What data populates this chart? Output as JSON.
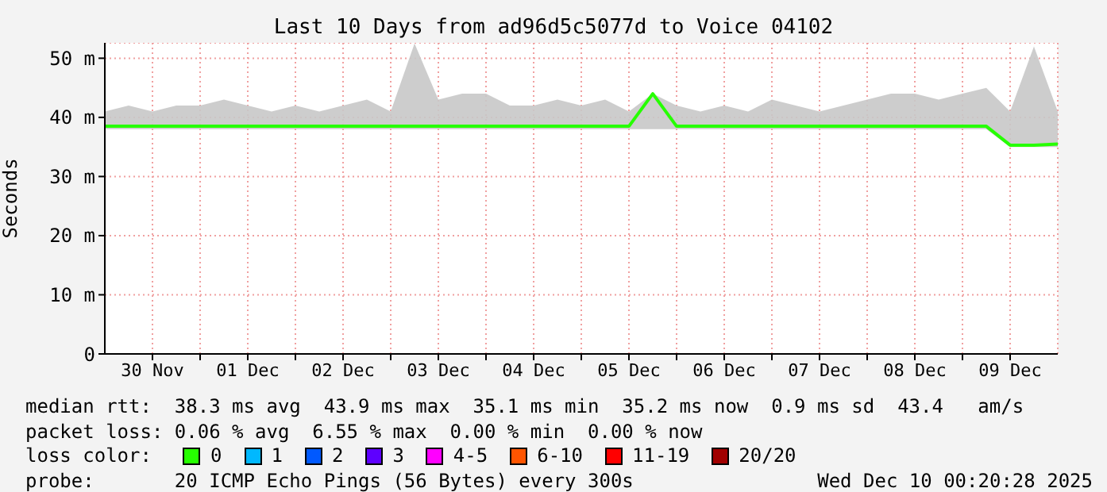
{
  "chart_data": {
    "type": "line",
    "title": "Last 10 Days from ad96d5c5077d to Voice 04102",
    "ylabel": "Seconds",
    "legend_title": "loss color:",
    "legend": "bottom",
    "grid": true,
    "marker": "none",
    "line_style": "solid",
    "x": [
      "2025-11-30T00:00",
      "2025-11-30T06:00",
      "2025-11-30T12:00",
      "2025-11-30T18:00",
      "2025-12-01T00:00",
      "2025-12-01T06:00",
      "2025-12-01T12:00",
      "2025-12-01T18:00",
      "2025-12-02T00:00",
      "2025-12-02T06:00",
      "2025-12-02T12:00",
      "2025-12-02T18:00",
      "2025-12-03T00:00",
      "2025-12-03T06:00",
      "2025-12-03T12:00",
      "2025-12-03T18:00",
      "2025-12-04T00:00",
      "2025-12-04T06:00",
      "2025-12-04T12:00",
      "2025-12-04T18:00",
      "2025-12-05T00:00",
      "2025-12-05T06:00",
      "2025-12-05T12:00",
      "2025-12-05T18:00",
      "2025-12-06T00:00",
      "2025-12-06T06:00",
      "2025-12-06T12:00",
      "2025-12-06T18:00",
      "2025-12-07T00:00",
      "2025-12-07T06:00",
      "2025-12-07T12:00",
      "2025-12-07T18:00",
      "2025-12-08T00:00",
      "2025-12-08T06:00",
      "2025-12-08T12:00",
      "2025-12-08T18:00",
      "2025-12-09T00:00",
      "2025-12-09T06:00",
      "2025-12-09T12:00",
      "2025-12-09T18:00",
      "2025-12-10T00:00"
    ],
    "series": [
      {
        "name": "0",
        "color": "#26ff00",
        "values": [
          38.5,
          38.5,
          38.5,
          38.5,
          38.5,
          38.5,
          38.5,
          38.5,
          38.5,
          38.5,
          38.5,
          38.5,
          38.5,
          38.5,
          38.5,
          38.5,
          38.5,
          38.5,
          38.5,
          38.5,
          38.5,
          38.5,
          38.5,
          44,
          38.5,
          38.5,
          38.5,
          38.5,
          38.5,
          38.5,
          38.5,
          38.5,
          38.5,
          38.5,
          38.5,
          38.5,
          38.5,
          38.5,
          35.3,
          35.3,
          35.5
        ],
        "lower": [
          38,
          38,
          38,
          38,
          38,
          38,
          38,
          38,
          38,
          38,
          38,
          38,
          38,
          38,
          38,
          38,
          38,
          38,
          38,
          38,
          38,
          38,
          38,
          38,
          38,
          38,
          38,
          38,
          38,
          38,
          38,
          38,
          38,
          38,
          38,
          38,
          38,
          38,
          35,
          35,
          35
        ],
        "upper": [
          41,
          42,
          41,
          42,
          42,
          43,
          42,
          41,
          42,
          41,
          42,
          43,
          41,
          52.5,
          43,
          44,
          44,
          42,
          42,
          43,
          42,
          43,
          41,
          44,
          42,
          41,
          42,
          41,
          43,
          42,
          41,
          42,
          43,
          44,
          44,
          43,
          44,
          45,
          41,
          52,
          41
        ]
      },
      {
        "name": "1",
        "color": "#00b8ff",
        "values": [
          null,
          null,
          null,
          null,
          null,
          null,
          null,
          null,
          null,
          null,
          null,
          null,
          null,
          null,
          null,
          null,
          null,
          null,
          null,
          null,
          null,
          null,
          null,
          null,
          null,
          null,
          null,
          null,
          null,
          null,
          null,
          null,
          null,
          null,
          null,
          null,
          null,
          null,
          null,
          null,
          null
        ]
      },
      {
        "name": "2",
        "color": "#0059ff",
        "values": [
          null,
          null,
          null,
          null,
          null,
          null,
          null,
          null,
          null,
          null,
          null,
          null,
          null,
          null,
          null,
          null,
          null,
          null,
          null,
          null,
          null,
          null,
          null,
          null,
          null,
          null,
          null,
          null,
          null,
          null,
          null,
          null,
          null,
          null,
          null,
          null,
          null,
          null,
          null,
          null,
          null
        ]
      },
      {
        "name": "3",
        "color": "#5e00ff",
        "values": [
          null,
          null,
          null,
          null,
          null,
          null,
          null,
          null,
          null,
          null,
          null,
          null,
          null,
          null,
          null,
          null,
          null,
          null,
          null,
          null,
          null,
          null,
          null,
          null,
          null,
          null,
          null,
          null,
          null,
          null,
          null,
          null,
          null,
          null,
          null,
          null,
          null,
          null,
          null,
          null,
          null
        ]
      },
      {
        "name": "4-5",
        "color": "#ff00ff",
        "values": [
          null,
          null,
          null,
          null,
          null,
          null,
          null,
          null,
          null,
          null,
          null,
          null,
          null,
          null,
          null,
          null,
          null,
          null,
          null,
          null,
          null,
          null,
          null,
          null,
          null,
          null,
          null,
          null,
          null,
          null,
          null,
          null,
          null,
          null,
          null,
          null,
          null,
          null,
          null,
          null,
          null
        ]
      },
      {
        "name": "6-10",
        "color": "#ff5500",
        "values": [
          null,
          null,
          null,
          null,
          null,
          null,
          null,
          null,
          null,
          null,
          null,
          null,
          null,
          null,
          null,
          null,
          null,
          null,
          null,
          null,
          null,
          null,
          null,
          null,
          null,
          null,
          null,
          null,
          null,
          null,
          null,
          null,
          null,
          null,
          null,
          null,
          null,
          null,
          null,
          null,
          null
        ]
      },
      {
        "name": "11-19",
        "color": "#ff0000",
        "values": [
          null,
          null,
          null,
          null,
          null,
          null,
          null,
          null,
          null,
          null,
          null,
          null,
          null,
          null,
          null,
          null,
          null,
          null,
          null,
          null,
          null,
          null,
          null,
          null,
          null,
          null,
          null,
          null,
          null,
          null,
          null,
          null,
          null,
          null,
          null,
          null,
          null,
          null,
          null,
          null,
          null
        ]
      },
      {
        "name": "20/20",
        "color": "#a10000",
        "values": [
          null,
          null,
          null,
          null,
          null,
          null,
          null,
          null,
          null,
          null,
          null,
          null,
          null,
          null,
          null,
          null,
          null,
          null,
          null,
          null,
          null,
          null,
          null,
          null,
          null,
          null,
          null,
          null,
          null,
          null,
          null,
          null,
          null,
          null,
          null,
          null,
          null,
          null,
          null,
          null,
          null
        ]
      }
    ],
    "xlim": [
      "2025-11-30T00:00",
      "2025-12-10T00:00"
    ],
    "xticks": [
      {
        "value": "2025-11-30T12:00",
        "label": "30 Nov"
      },
      {
        "value": "2025-12-01T00:00",
        "label": null
      },
      {
        "value": "2025-12-01T12:00",
        "label": "01 Dec"
      },
      {
        "value": "2025-12-02T00:00",
        "label": null
      },
      {
        "value": "2025-12-02T12:00",
        "label": "02 Dec"
      },
      {
        "value": "2025-12-03T00:00",
        "label": null
      },
      {
        "value": "2025-12-03T12:00",
        "label": "03 Dec"
      },
      {
        "value": "2025-12-04T00:00",
        "label": null
      },
      {
        "value": "2025-12-04T12:00",
        "label": "04 Dec"
      },
      {
        "value": "2025-12-05T00:00",
        "label": null
      },
      {
        "value": "2025-12-05T12:00",
        "label": "05 Dec"
      },
      {
        "value": "2025-12-06T00:00",
        "label": null
      },
      {
        "value": "2025-12-06T12:00",
        "label": "06 Dec"
      },
      {
        "value": "2025-12-07T00:00",
        "label": null
      },
      {
        "value": "2025-12-07T12:00",
        "label": "07 Dec"
      },
      {
        "value": "2025-12-08T00:00",
        "label": null
      },
      {
        "value": "2025-12-08T12:00",
        "label": "08 Dec"
      },
      {
        "value": "2025-12-09T00:00",
        "label": null
      },
      {
        "value": "2025-12-09T12:00",
        "label": "09 Dec"
      }
    ],
    "ylim": [
      0,
      52.6
    ],
    "yticks": [
      0,
      {
        "value": 10,
        "label": "10 m"
      },
      {
        "value": 20,
        "label": "20 m"
      },
      {
        "value": 30,
        "label": "30 m"
      },
      {
        "value": 40,
        "label": "40 m"
      },
      {
        "value": 50,
        "label": "50 m"
      }
    ],
    "annotations": [
      "median rtt:  38.3 ms avg  43.9 ms max  35.1 ms min  35.2 ms now  0.9 ms sd  43.4   am/s",
      "packet loss: 0.06 % avg  6.55 % max  0.00 % min  0.00 % now",
      "probe:       20 ICMP Echo Pings (56 Bytes) every 300s",
      "Wed Dec 10 00:20:28 2025"
    ]
  }
}
